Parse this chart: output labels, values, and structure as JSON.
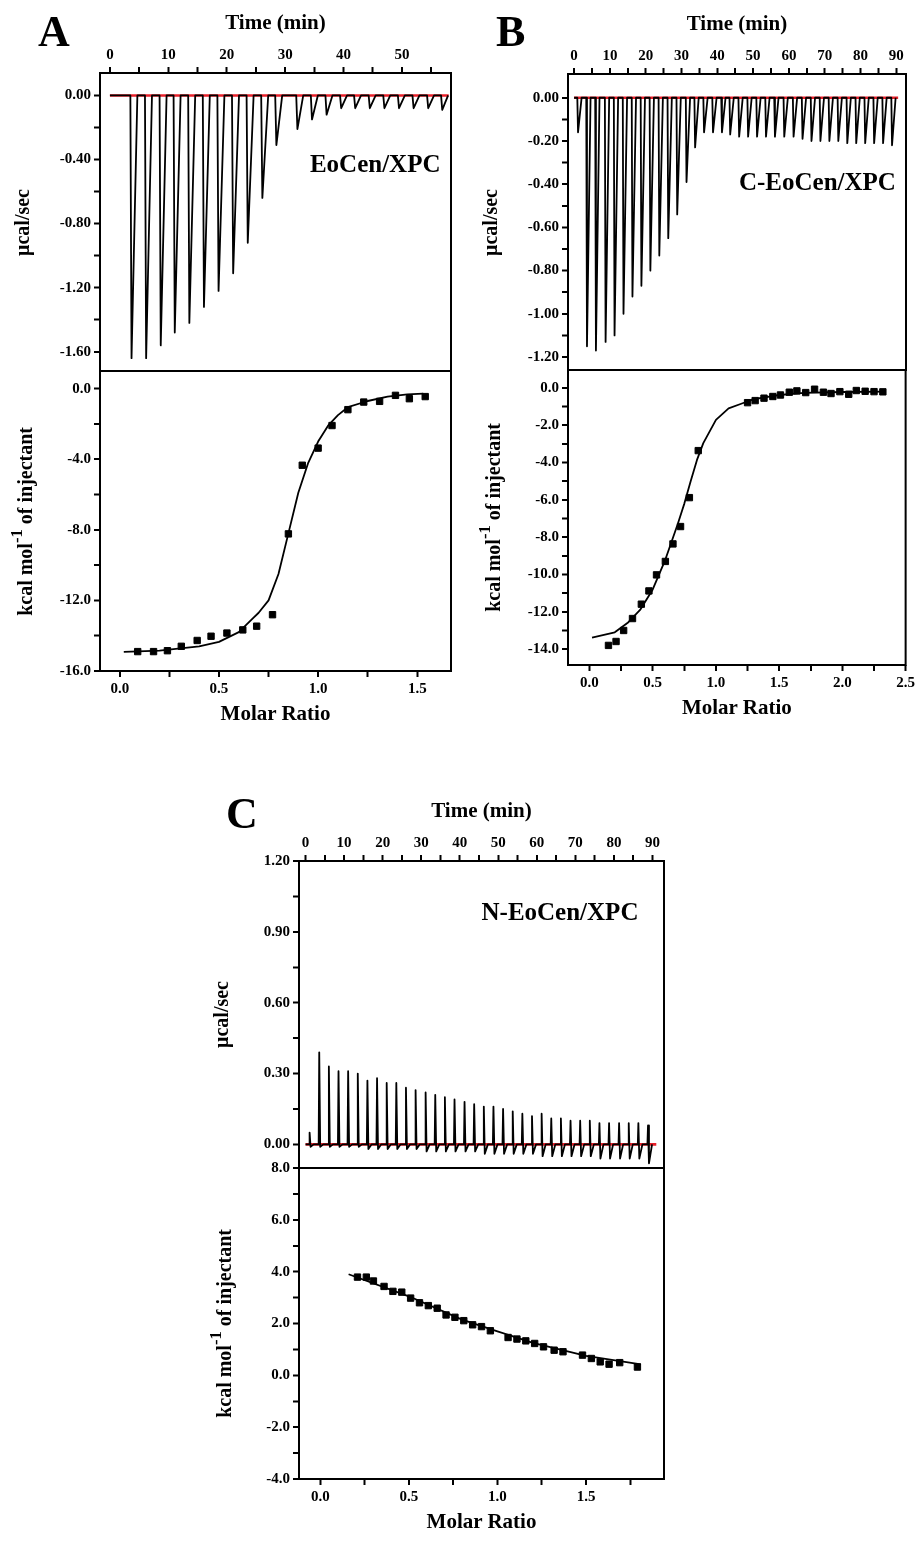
{
  "chart_data": [
    {
      "type": "line",
      "title": "A",
      "xlabel": "Time (min)",
      "ylabel": "μcal/sec",
      "annotations": [
        "EoCen/XPC"
      ],
      "xlim": [
        -1.7,
        58.4
      ],
      "xticks": [
        0,
        {
          "value": 5,
          "label": null
        },
        10,
        {
          "value": 15,
          "label": null
        },
        20,
        {
          "value": 25,
          "label": null
        },
        30,
        {
          "value": 35,
          "label": null
        },
        40,
        {
          "value": 45,
          "label": null
        },
        50,
        {
          "value": 55,
          "label": null
        }
      ],
      "ylim": [
        -1.72,
        0.14
      ],
      "yticks": [
        {
          "value": -1.6,
          "label": "-1.60"
        },
        {
          "value": -1.4,
          "label": null
        },
        {
          "value": -1.2,
          "label": "-1.20"
        },
        {
          "value": -1.0,
          "label": null
        },
        {
          "value": -0.8,
          "label": "-0.80"
        },
        {
          "value": -0.6,
          "label": null
        },
        {
          "value": -0.4,
          "label": "-0.40"
        },
        {
          "value": -0.2,
          "label": null
        },
        {
          "value": 0,
          "label": "0.00"
        }
      ],
      "series": [
        {
          "color": "#000000",
          "x": [
            0,
            3.5,
            3.7,
            4.7,
            6.0,
            6.2,
            7.2,
            8.5,
            8.7,
            9.7,
            10.9,
            11.1,
            12.1,
            13.4,
            13.6,
            14.6,
            15.9,
            16.1,
            17.1,
            18.4,
            18.6,
            19.6,
            20.9,
            21.1,
            22.1,
            23.4,
            23.6,
            24.6,
            25.9,
            26.1,
            27.1,
            28.3,
            28.5,
            29.5,
            31.9,
            32.1,
            33.1,
            34.4,
            34.6,
            35.6,
            36.9,
            37.1,
            38.1,
            39.4,
            39.6,
            40.6,
            41.8,
            42.0,
            43.0,
            44.3,
            44.5,
            45.5,
            46.8,
            47.0,
            48.0,
            49.3,
            49.5,
            50.5,
            51.8,
            52.0,
            53.0,
            54.3,
            54.5,
            55.5,
            56.7,
            56.9,
            57.9
          ],
          "values": [
            0,
            0,
            -1.64,
            0,
            0,
            -1.64,
            0,
            0,
            -1.56,
            0,
            0,
            -1.48,
            0,
            0,
            -1.42,
            0,
            0,
            -1.32,
            0,
            0,
            -1.22,
            0,
            0,
            -1.11,
            0,
            0,
            -0.92,
            0,
            0,
            -0.64,
            0,
            0,
            -0.31,
            0,
            0,
            -0.21,
            0,
            0,
            -0.15,
            0,
            0,
            -0.12,
            0,
            0,
            -0.08,
            0,
            0,
            -0.08,
            0,
            0,
            -0.08,
            0,
            0,
            -0.08,
            0,
            0,
            -0.08,
            0,
            0,
            -0.08,
            0,
            0,
            -0.08,
            0,
            0,
            -0.09,
            0
          ]
        },
        {
          "color": "#e8202a",
          "x": [
            0,
            58
          ],
          "values": [
            0,
            0
          ]
        }
      ]
    },
    {
      "type": "scatter",
      "xlabel": "Molar Ratio",
      "ylabel": "kcal mol$^{-1}$ of injectant",
      "xlim": [
        -0.1,
        1.67
      ],
      "xticks": [
        {
          "value": 0,
          "label": "0.0"
        },
        {
          "value": 0.25,
          "label": null
        },
        0.5,
        {
          "value": 0.75,
          "label": null
        },
        {
          "value": 1,
          "label": "1.0"
        },
        {
          "value": 1.25,
          "label": null
        },
        1.5
      ],
      "ylim": [
        -16.0,
        1.0
      ],
      "yticks": [
        {
          "value": -16,
          "label": "-16.0"
        },
        {
          "value": -14,
          "label": null
        },
        {
          "value": -12,
          "label": "-12.0"
        },
        {
          "value": -10,
          "label": null
        },
        {
          "value": -8,
          "label": "-8.0"
        },
        {
          "value": -6,
          "label": null
        },
        {
          "value": -4,
          "label": "-4.0"
        },
        {
          "value": -2,
          "label": null
        },
        {
          "value": 0,
          "label": "0.0"
        }
      ],
      "series": [
        {
          "marker": "square",
          "color": "#000000",
          "x": [
            0.09,
            0.17,
            0.24,
            0.31,
            0.39,
            0.46,
            0.54,
            0.62,
            0.69,
            0.77,
            0.85,
            0.92,
            1.0,
            1.07,
            1.15,
            1.23,
            1.31,
            1.39,
            1.46,
            1.54
          ],
          "values": [
            -14.9,
            -14.9,
            -14.85,
            -14.6,
            -14.27,
            -14.03,
            -13.85,
            -13.67,
            -13.46,
            -12.81,
            -8.23,
            -4.34,
            -3.37,
            -2.09,
            -1.19,
            -0.76,
            -0.72,
            -0.38,
            -0.57,
            -0.45
          ]
        },
        {
          "type": "line",
          "color": "#000000",
          "x": [
            0.02,
            0.2,
            0.4,
            0.5,
            0.6,
            0.7,
            0.75,
            0.8,
            0.85,
            0.9,
            0.95,
            1.0,
            1.05,
            1.1,
            1.15,
            1.25,
            1.35,
            1.45,
            1.53
          ],
          "values": [
            -14.92,
            -14.85,
            -14.6,
            -14.35,
            -13.8,
            -12.7,
            -12.0,
            -10.5,
            -8.2,
            -5.9,
            -4.2,
            -3.0,
            -2.1,
            -1.5,
            -1.05,
            -0.7,
            -0.45,
            -0.33,
            -0.28
          ]
        }
      ]
    },
    {
      "type": "line",
      "title": "B",
      "xlabel": "Time (min)",
      "ylabel": "μcal/sec",
      "annotations": [
        "C-EoCen/XPC"
      ],
      "xlim": [
        -1.7,
        92.7
      ],
      "xticks": [
        0,
        {
          "value": 5,
          "label": null
        },
        10,
        {
          "value": 15,
          "label": null
        },
        20,
        {
          "value": 25,
          "label": null
        },
        30,
        {
          "value": 35,
          "label": null
        },
        40,
        {
          "value": 45,
          "label": null
        },
        50,
        {
          "value": 55,
          "label": null
        },
        60,
        {
          "value": 65,
          "label": null
        },
        70,
        {
          "value": 75,
          "label": null
        },
        80,
        {
          "value": 85,
          "label": null
        },
        90
      ],
      "ylim": [
        -1.26,
        0.11
      ],
      "yticks": [
        {
          "value": -1.2,
          "label": "-1.20"
        },
        {
          "value": -1.1,
          "label": null
        },
        {
          "value": -1.0,
          "label": "-1.00"
        },
        {
          "value": -0.9,
          "label": null
        },
        {
          "value": -0.8,
          "label": "-0.80"
        },
        {
          "value": -0.7,
          "label": null
        },
        {
          "value": -0.6,
          "label": "-0.60"
        },
        {
          "value": -0.5,
          "label": null
        },
        {
          "value": -0.4,
          "label": "-0.40"
        },
        {
          "value": -0.3,
          "label": null
        },
        {
          "value": -0.2,
          "label": "-0.20"
        },
        {
          "value": -0.1,
          "label": null
        },
        {
          "value": 0,
          "label": "0.00"
        }
      ],
      "series": [
        {
          "color": "#000000",
          "x": [
            0,
            0.9,
            1.1,
            2.1,
            3.4,
            3.6,
            4.6,
            5.9,
            6.1,
            7.1,
            8.6,
            8.8,
            9.8,
            11.1,
            11.3,
            12.3,
            13.6,
            13.8,
            14.8,
            16.1,
            16.3,
            17.3,
            18.6,
            18.8,
            19.8,
            21.1,
            21.3,
            22.3,
            23.6,
            23.8,
            24.8,
            26.1,
            26.3,
            27.3,
            28.6,
            28.8,
            29.8,
            31.2,
            31.4,
            32.4,
            33.6,
            33.8,
            34.8,
            36.1,
            36.3,
            37.3,
            38.6,
            38.8,
            39.8,
            41.1,
            41.3,
            42.3,
            43.4,
            43.6,
            44.6,
            45.9,
            46.1,
            47.1,
            48.4,
            48.6,
            49.6,
            50.9,
            51.1,
            52.1,
            53.4,
            53.6,
            54.6,
            55.9,
            56.1,
            57.1,
            58.5,
            58.7,
            59.7,
            61.1,
            61.3,
            62.3,
            63.6,
            63.8,
            64.8,
            66.1,
            66.3,
            67.3,
            68.6,
            68.8,
            69.8,
            71.1,
            71.3,
            72.3,
            73.6,
            73.8,
            74.8,
            76.1,
            76.3,
            77.3,
            78.6,
            78.8,
            79.8,
            81.1,
            81.3,
            82.3,
            83.6,
            83.8,
            84.8,
            86.1,
            86.3,
            87.3,
            88.6,
            88.8,
            89.8
          ],
          "values": [
            0,
            0,
            -0.16,
            0,
            0,
            -1.15,
            0,
            0,
            -1.17,
            0,
            0,
            -1.13,
            0,
            0,
            -1.1,
            0,
            0,
            -1.0,
            0,
            0,
            -0.92,
            0,
            0,
            -0.87,
            0,
            0,
            -0.8,
            0,
            0,
            -0.73,
            0,
            0,
            -0.65,
            0,
            0,
            -0.54,
            0,
            0,
            -0.39,
            0,
            0,
            -0.23,
            0,
            0,
            -0.16,
            0,
            0,
            -0.16,
            0,
            0,
            -0.16,
            0,
            0,
            -0.17,
            0,
            0,
            -0.18,
            0,
            0,
            -0.18,
            0,
            0,
            -0.18,
            0,
            0,
            -0.18,
            0,
            0,
            -0.18,
            0,
            0,
            -0.18,
            0,
            0,
            -0.18,
            0,
            0,
            -0.19,
            0,
            0,
            -0.2,
            0,
            0,
            -0.2,
            0,
            0,
            -0.2,
            0,
            0,
            -0.2,
            0,
            0,
            -0.21,
            0,
            0,
            -0.21,
            0,
            0,
            -0.21,
            0,
            0,
            -0.21,
            0,
            0,
            -0.21,
            0,
            0,
            -0.22,
            0
          ]
        },
        {
          "color": "#e8202a",
          "x": [
            0,
            90.5
          ],
          "values": [
            0,
            0
          ]
        }
      ]
    },
    {
      "type": "scatter",
      "xlabel": "Molar Ratio",
      "ylabel": "kcal mol$^{-1}$ of injectant",
      "xlim": [
        -0.17,
        2.5
      ],
      "xticks": [
        {
          "value": 0,
          "label": "0.0"
        },
        {
          "value": 0.25,
          "label": null
        },
        0.5,
        {
          "value": 0.75,
          "label": null
        },
        {
          "value": 1,
          "label": "1.0"
        },
        {
          "value": 1.25,
          "label": null
        },
        1.5,
        {
          "value": 1.75,
          "label": null
        },
        {
          "value": 2,
          "label": "2.0"
        },
        {
          "value": 2.25,
          "label": null
        },
        2.5
      ],
      "ylim": [
        -14.85,
        0.96
      ],
      "yticks": [
        {
          "value": -14,
          "label": "-14.0"
        },
        {
          "value": -13,
          "label": null
        },
        {
          "value": -12,
          "label": "-12.0"
        },
        {
          "value": -11,
          "label": null
        },
        {
          "value": -10,
          "label": "-10.0"
        },
        {
          "value": -9,
          "label": null
        },
        {
          "value": -8,
          "label": "-8.0"
        },
        {
          "value": -7,
          "label": null
        },
        {
          "value": -6,
          "label": "-6.0"
        },
        {
          "value": -5,
          "label": null
        },
        {
          "value": -4,
          "label": "-4.0"
        },
        {
          "value": -3,
          "label": null
        },
        {
          "value": -2,
          "label": "-2.0"
        },
        {
          "value": -1,
          "label": null
        },
        {
          "value": 0,
          "label": "0.0"
        }
      ],
      "series": [
        {
          "marker": "square",
          "color": "#000000",
          "x": [
            0.15,
            0.21,
            0.27,
            0.34,
            0.41,
            0.47,
            0.53,
            0.6,
            0.66,
            0.72,
            0.79,
            0.86,
            1.25,
            1.31,
            1.38,
            1.45,
            1.51,
            1.58,
            1.64,
            1.71,
            1.78,
            1.85,
            1.91,
            1.98,
            2.05,
            2.11,
            2.18,
            2.25,
            2.32
          ],
          "values": [
            -13.8,
            -13.59,
            -13.0,
            -12.36,
            -11.59,
            -10.88,
            -10.02,
            -9.3,
            -8.36,
            -7.43,
            -5.88,
            -3.36,
            -0.79,
            -0.68,
            -0.55,
            -0.46,
            -0.38,
            -0.23,
            -0.16,
            -0.25,
            -0.07,
            -0.23,
            -0.3,
            -0.2,
            -0.34,
            -0.14,
            -0.18,
            -0.2,
            -0.21
          ]
        },
        {
          "type": "line",
          "color": "#000000",
          "x": [
            0.02,
            0.2,
            0.3,
            0.4,
            0.5,
            0.6,
            0.7,
            0.75,
            0.8,
            0.85,
            0.9,
            1.0,
            1.1,
            1.2,
            1.3,
            1.5,
            1.7,
            2.0,
            2.33
          ],
          "values": [
            -13.38,
            -13.1,
            -12.6,
            -11.9,
            -10.8,
            -9.2,
            -7.25,
            -6.2,
            -5.0,
            -3.86,
            -2.96,
            -1.71,
            -1.1,
            -0.85,
            -0.6,
            -0.38,
            -0.27,
            -0.22,
            -0.2
          ]
        }
      ]
    },
    {
      "type": "line",
      "title": "C",
      "xlabel": "Time (min)",
      "ylabel": "μcal/sec",
      "annotations": [
        "N-EoCen/XPC"
      ],
      "xlim": [
        -1.7,
        93
      ],
      "xticks": [
        0,
        {
          "value": 5,
          "label": null
        },
        10,
        {
          "value": 15,
          "label": null
        },
        20,
        {
          "value": 25,
          "label": null
        },
        30,
        {
          "value": 35,
          "label": null
        },
        40,
        {
          "value": 45,
          "label": null
        },
        50,
        {
          "value": 55,
          "label": null
        },
        60,
        {
          "value": 65,
          "label": null
        },
        70,
        {
          "value": 75,
          "label": null
        },
        80,
        {
          "value": 85,
          "label": null
        },
        90
      ],
      "ylim": [
        -0.1,
        1.2
      ],
      "yticks": [
        {
          "value": 0,
          "label": "0.00"
        },
        {
          "value": 0.15,
          "label": null
        },
        {
          "value": 0.3,
          "label": "0.30"
        },
        {
          "value": 0.45,
          "label": null
        },
        {
          "value": 0.6,
          "label": "0.60"
        },
        {
          "value": 0.75,
          "label": null
        },
        {
          "value": 0.9,
          "label": "0.90"
        },
        {
          "value": 1.05,
          "label": null
        },
        {
          "value": 1.2,
          "label": "1.20"
        }
      ],
      "series": [
        {
          "color": "#000000",
          "x": [
            0,
            0.9,
            1.05,
            1.3,
            2.1,
            3.4,
            3.55,
            3.8,
            4.6,
            5.9,
            6.05,
            6.3,
            7.1,
            8.4,
            8.55,
            8.8,
            9.6,
            10.9,
            11.05,
            11.3,
            12.1,
            13.4,
            13.55,
            13.8,
            14.6,
            15.9,
            16.05,
            16.3,
            17.1,
            18.4,
            18.55,
            18.8,
            19.6,
            20.9,
            21.05,
            21.3,
            22.1,
            23.4,
            23.55,
            23.8,
            24.6,
            25.9,
            26.05,
            26.3,
            27.1,
            28.4,
            28.55,
            28.8,
            29.6,
            31.0,
            31.15,
            31.4,
            32.2,
            33.5,
            33.65,
            33.9,
            34.7,
            36.0,
            36.15,
            36.4,
            37.2,
            38.5,
            38.65,
            38.9,
            39.7,
            41.1,
            41.25,
            41.5,
            42.3,
            43.6,
            43.75,
            44.0,
            44.8,
            46.1,
            46.25,
            46.5,
            47.3,
            48.6,
            48.75,
            49.0,
            49.8,
            51.1,
            51.25,
            51.5,
            52.3,
            53.6,
            53.75,
            54.0,
            54.8,
            56.1,
            56.25,
            56.5,
            57.3,
            58.6,
            58.75,
            59.0,
            59.8,
            61.1,
            61.25,
            61.5,
            62.3,
            63.6,
            63.75,
            64.0,
            64.8,
            66.1,
            66.25,
            66.5,
            67.3,
            68.6,
            68.75,
            69.0,
            69.8,
            71.1,
            71.25,
            71.5,
            72.3,
            73.6,
            73.75,
            74.0,
            74.8,
            76.1,
            76.25,
            76.5,
            77.3,
            78.6,
            78.75,
            79.0,
            79.8,
            81.2,
            81.35,
            81.6,
            82.4,
            83.7,
            83.85,
            84.1,
            84.9,
            86.2,
            86.35,
            86.6,
            87.4,
            88.7,
            88.85,
            89.1,
            89.9
          ],
          "values": [
            0,
            0,
            0.05,
            -0.01,
            0,
            0,
            0.39,
            -0.01,
            0,
            0,
            0.33,
            -0.01,
            0,
            0,
            0.31,
            -0.01,
            0,
            0,
            0.31,
            -0.01,
            0,
            0,
            0.3,
            -0.01,
            0,
            0,
            0.27,
            -0.02,
            0,
            0,
            0.28,
            -0.02,
            0,
            0,
            0.26,
            -0.02,
            0,
            0,
            0.26,
            -0.02,
            0,
            0,
            0.24,
            -0.02,
            0,
            0,
            0.23,
            -0.02,
            0,
            0,
            0.22,
            -0.03,
            0,
            0,
            0.21,
            -0.03,
            0,
            0,
            0.2,
            -0.03,
            0,
            0,
            0.19,
            -0.03,
            0,
            0,
            0.18,
            -0.03,
            0,
            0,
            0.17,
            -0.03,
            0,
            0,
            0.16,
            -0.04,
            0,
            0,
            0.16,
            -0.04,
            0,
            0,
            0.15,
            -0.04,
            0,
            0,
            0.14,
            -0.04,
            0,
            0,
            0.13,
            -0.04,
            0,
            0,
            0.12,
            -0.04,
            0,
            0,
            0.13,
            -0.05,
            0,
            0,
            0.11,
            -0.05,
            0,
            0,
            0.11,
            -0.05,
            0,
            0,
            0.1,
            -0.05,
            0,
            0,
            0.1,
            -0.05,
            0,
            0,
            0.1,
            -0.05,
            0,
            0,
            0.09,
            -0.06,
            0,
            0,
            0.09,
            -0.06,
            0,
            0,
            0.09,
            -0.06,
            0,
            0,
            0.09,
            -0.06,
            0,
            0,
            0.09,
            -0.06,
            0,
            0,
            0.08,
            -0.08,
            0
          ]
        },
        {
          "color": "#e8202a",
          "x": [
            0,
            91
          ],
          "values": [
            0,
            0
          ]
        }
      ]
    },
    {
      "type": "scatter",
      "xlabel": "Molar Ratio",
      "ylabel": "kcal mol$^{-1}$ of injectant",
      "xlim": [
        -0.12,
        1.94
      ],
      "xticks": [
        {
          "value": 0,
          "label": "0.0"
        },
        {
          "value": 0.25,
          "label": null
        },
        0.5,
        {
          "value": 0.75,
          "label": null
        },
        {
          "value": 1,
          "label": "1.0"
        },
        {
          "value": 1.25,
          "label": null
        },
        1.5,
        {
          "value": 1.75,
          "label": null
        }
      ],
      "ylim": [
        -4.0,
        8.0
      ],
      "yticks": [
        {
          "value": -4,
          "label": "-4.0"
        },
        {
          "value": -3,
          "label": null
        },
        {
          "value": -2,
          "label": "-2.0"
        },
        {
          "value": -1,
          "label": null
        },
        {
          "value": 0,
          "label": "0.0"
        },
        {
          "value": 1,
          "label": null
        },
        {
          "value": 2,
          "label": "2.0"
        },
        {
          "value": 3,
          "label": null
        },
        {
          "value": 4,
          "label": "4.0"
        },
        {
          "value": 5,
          "label": null
        },
        {
          "value": 6,
          "label": "6.0"
        },
        {
          "value": 7,
          "label": null
        },
        {
          "value": 8,
          "label": "8.0"
        }
      ],
      "series": [
        {
          "marker": "square",
          "color": "#000000",
          "x": [
            0.21,
            0.26,
            0.3,
            0.36,
            0.41,
            0.46,
            0.51,
            0.56,
            0.61,
            0.66,
            0.71,
            0.76,
            0.81,
            0.86,
            0.91,
            0.96,
            1.06,
            1.11,
            1.16,
            1.21,
            1.26,
            1.32,
            1.37,
            1.48,
            1.53,
            1.58,
            1.63,
            1.69,
            1.79
          ],
          "values": [
            3.79,
            3.79,
            3.64,
            3.43,
            3.24,
            3.21,
            2.98,
            2.8,
            2.69,
            2.59,
            2.33,
            2.24,
            2.11,
            1.95,
            1.88,
            1.72,
            1.46,
            1.4,
            1.33,
            1.23,
            1.1,
            0.97,
            0.91,
            0.78,
            0.65,
            0.52,
            0.43,
            0.49,
            0.32
          ]
        },
        {
          "type": "line",
          "color": "#000000",
          "x": [
            0.16,
            0.5,
            0.8,
            1.0,
            1.2,
            1.5,
            1.81
          ],
          "values": [
            3.9,
            3.05,
            2.15,
            1.7,
            1.25,
            0.75,
            0.42
          ]
        }
      ]
    }
  ]
}
